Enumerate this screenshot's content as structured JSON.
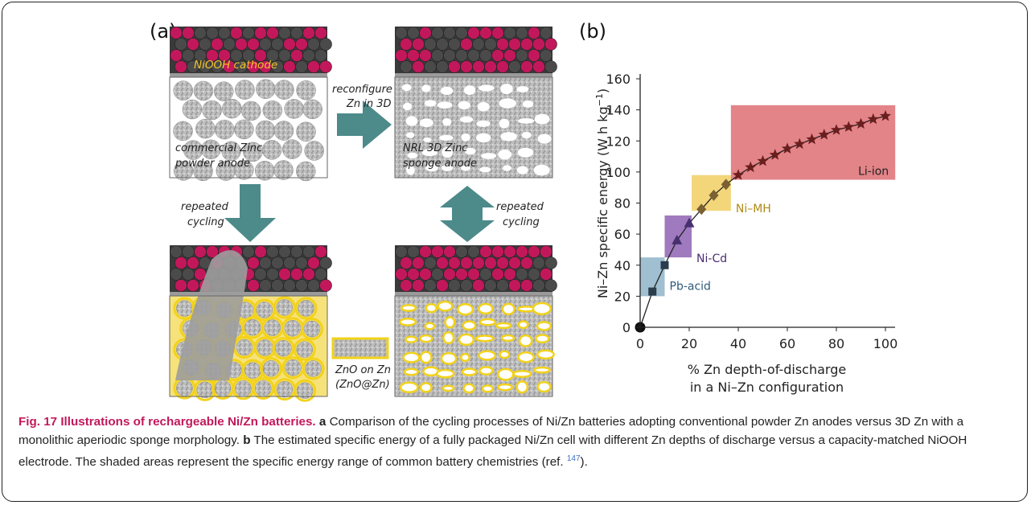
{
  "panel_a": {
    "label": "(a)",
    "cathode_label": "NiOOH cathode",
    "commercial_label_1": "commercial Zinc",
    "commercial_label_2": "powder anode",
    "reconfigure_1": "reconfigure",
    "reconfigure_2": "Zn in 3D",
    "nrl_label_1": "NRL 3D Zinc",
    "nrl_label_2": "sponge anode",
    "repeated_left_1": "repeated",
    "repeated_left_2": "cycling",
    "repeated_right_1": "repeated",
    "repeated_right_2": "cycling",
    "zno_label_1": "ZnO on Zn",
    "zno_label_2": "(ZnO@Zn)",
    "colors": {
      "arrow": "#4d8a8a",
      "zno": "#f2d21b",
      "particle": "#c8c8c8",
      "nickel": "#c2185b"
    }
  },
  "panel_b": {
    "label": "(b)",
    "chart_data": {
      "type": "scatter",
      "xlabel": "% Zn depth-of-discharge",
      "xlabel_2": "in a Ni–Zn configuration",
      "ylabel": "Ni–Zn specific energy (W h kg",
      "ylabel_sup": "−1",
      "ylabel_close": ")",
      "xlim": [
        0,
        100
      ],
      "ylim": [
        0,
        160
      ],
      "xticks": [
        "0",
        "20",
        "40",
        "60",
        "80",
        "100"
      ],
      "yticks": [
        "0",
        "20",
        "40",
        "60",
        "80",
        "100",
        "120",
        "140",
        "160"
      ],
      "regions": [
        {
          "name": "Pb-acid",
          "x": [
            0,
            10
          ],
          "y": [
            20,
            45
          ],
          "color": "#8fb4c9"
        },
        {
          "name": "Ni-Cd",
          "x": [
            10,
            21
          ],
          "y": [
            45,
            72
          ],
          "color": "#8e63b3"
        },
        {
          "name": "Ni–MH",
          "x": [
            21,
            37
          ],
          "y": [
            75,
            98
          ],
          "color": "#f1cf63"
        },
        {
          "name": "Li-ion",
          "x": [
            37,
            104
          ],
          "y": [
            95,
            143
          ],
          "color": "#de6f73"
        }
      ],
      "series": [
        {
          "marker": "circle",
          "color": "#111111",
          "points": [
            [
              0,
              0
            ]
          ]
        },
        {
          "marker": "square",
          "color": "#2a3d4c",
          "points": [
            [
              5,
              23
            ],
            [
              10,
              40
            ]
          ]
        },
        {
          "marker": "triangle",
          "color": "#463070",
          "points": [
            [
              15,
              56
            ],
            [
              20,
              67
            ]
          ]
        },
        {
          "marker": "diamond",
          "color": "#7a6032",
          "points": [
            [
              25,
              76
            ],
            [
              30,
              85
            ],
            [
              35,
              92
            ]
          ]
        },
        {
          "marker": "star",
          "color": "#6a1e1e",
          "points": [
            [
              40,
              98
            ],
            [
              45,
              103
            ],
            [
              50,
              107
            ],
            [
              55,
              111
            ],
            [
              60,
              115
            ],
            [
              65,
              118
            ],
            [
              70,
              121
            ],
            [
              75,
              124
            ],
            [
              80,
              127
            ],
            [
              85,
              129
            ],
            [
              90,
              131
            ],
            [
              95,
              134
            ],
            [
              100,
              136
            ]
          ]
        }
      ]
    }
  },
  "caption": {
    "fig_head": "Fig. 17 Illustrations of rechargeable Ni/Zn batteries.",
    "a_label": "a",
    "a_text": "Comparison of the cycling processes of Ni/Zn batteries adopting conventional powder Zn anodes versus 3D Zn with a monolithic aperiodic sponge morphology.",
    "b_label": "b",
    "b_text": "The estimated specific energy of a fully packaged Ni/Zn cell with different Zn depths of discharge versus a capacity-matched NiOOH electrode. The shaded areas represent the specific energy range of common battery chemistries (ref.",
    "ref": "147",
    "end": ")."
  }
}
